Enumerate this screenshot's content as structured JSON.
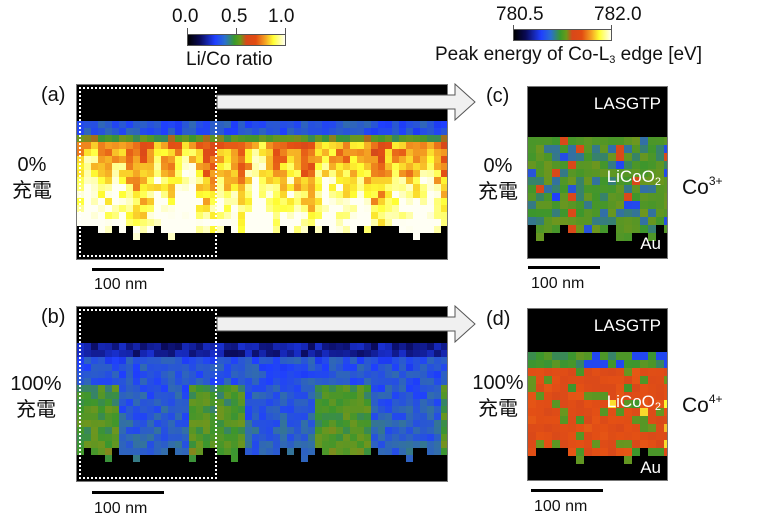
{
  "colorbars": {
    "licoratio": {
      "ticks": [
        "0.0",
        "0.5",
        "1.0"
      ],
      "title": "Li/Co ratio",
      "range": [
        0.0,
        1.0
      ]
    },
    "peak_energy": {
      "ticks": [
        "780.5",
        "782.0"
      ],
      "title_main": "Peak energy of Co-L",
      "title_sub": "3",
      "title_tail": " edge [eV]",
      "range": [
        780.5,
        782.0
      ]
    }
  },
  "panels": {
    "a": {
      "letter": "(a)",
      "state": "0%\n充電",
      "scale": "100 nm",
      "map": "Li/Co ratio map, pristine"
    },
    "b": {
      "letter": "(b)",
      "state": "100%\n充電",
      "scale": "100 nm",
      "map": "Li/Co ratio map, charged"
    },
    "c": {
      "letter": "(c)",
      "state": "0%\n充電",
      "scale": "100 nm",
      "top_layer": "LASGTP",
      "middle_main": "LiCoO",
      "middle_sub": "2",
      "bottom_layer": "Au",
      "ion_main": "Co",
      "ion_sup": "3+"
    },
    "d": {
      "letter": "(d)",
      "state": "100%\n充電",
      "scale": "100 nm",
      "top_layer": "LASGTP",
      "middle_main": "LiCoO",
      "middle_sub": "2",
      "bottom_layer": "Au",
      "ion_main": "Co",
      "ion_sup": "4+"
    }
  },
  "colors": {
    "map_background": "#000000",
    "arrow_fill": "#f0f0f0",
    "dotted_outline": "#ffffff"
  }
}
